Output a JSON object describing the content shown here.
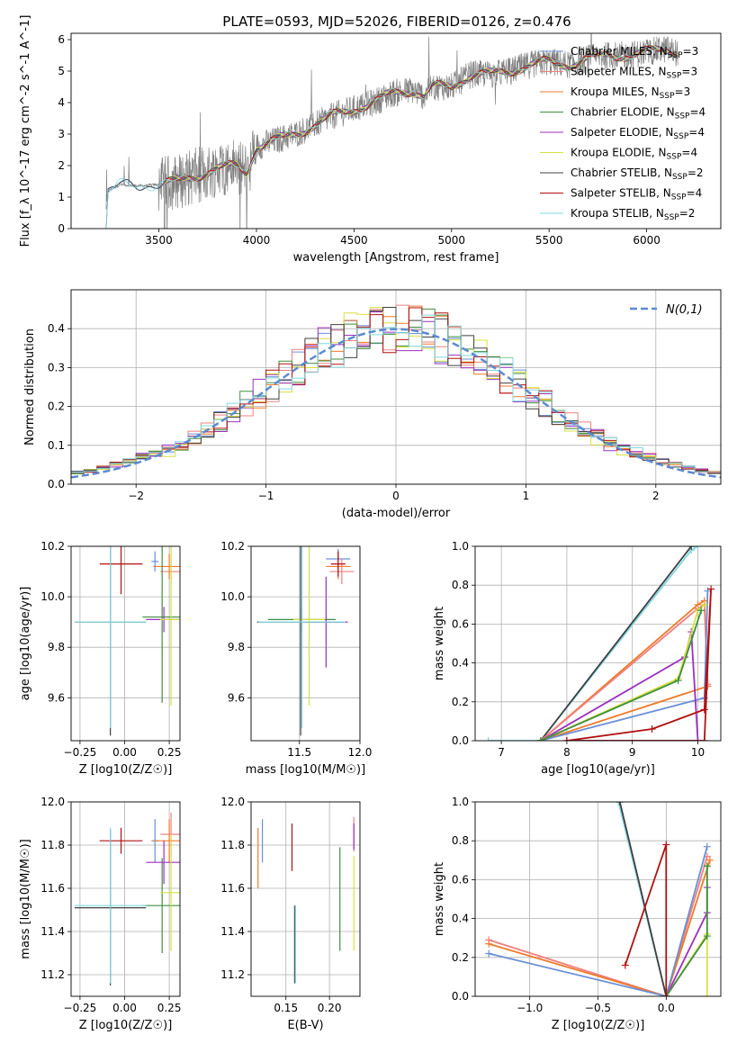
{
  "figure": {
    "title": "PLATE=0593, MJD=52026, FIBERID=0126, z=0.476"
  },
  "chart_data": [
    {
      "id": "spectrum",
      "type": "line",
      "xlabel": "wavelength [Angstrom, rest frame]",
      "ylabel": "Flux [f_λ 10^-17 erg cm^-2 s^-1 A^-1]",
      "xlim": [
        3050,
        6380
      ],
      "ylim": [
        0,
        6.2
      ],
      "xticks": [
        3500,
        4000,
        4500,
        5000,
        5500,
        6000
      ],
      "yticks": [
        0,
        1,
        2,
        3,
        4,
        5,
        6
      ],
      "grid": false,
      "legend_position": "top-right",
      "data_color": "#808080",
      "model_continuum": {
        "x": [
          3220,
          3240,
          3300,
          3400,
          3500,
          3600,
          3700,
          3800,
          3900,
          3950,
          4000,
          4050,
          4100,
          4200,
          4300,
          4400,
          4500,
          4600,
          4700,
          4800,
          4860,
          4900,
          5000,
          5100,
          5200,
          5300,
          5400,
          5500,
          5600,
          5700,
          5800,
          5900,
          6000,
          6100,
          6150
        ],
        "y": [
          0.0,
          1.2,
          1.4,
          1.35,
          1.4,
          1.5,
          1.7,
          1.9,
          2.0,
          1.8,
          2.6,
          2.7,
          2.8,
          3.0,
          3.3,
          3.6,
          3.8,
          4.0,
          4.3,
          4.4,
          4.2,
          4.5,
          4.5,
          4.9,
          4.9,
          5.0,
          5.2,
          5.3,
          5.2,
          5.4,
          5.5,
          5.5,
          5.6,
          5.7,
          5.6
        ]
      },
      "series": [
        {
          "name": "Chabrier MILES, N_SSP=3",
          "name_main": "Chabrier MILES, N",
          "name_sub": "SSP",
          "name_tail": "=3",
          "color": "#6a8fd6"
        },
        {
          "name": "Salpeter MILES, N_SSP=3",
          "name_main": "Salpeter MILES, N",
          "name_sub": "SSP",
          "name_tail": "=3",
          "color": "#f08080"
        },
        {
          "name": "Kroupa MILES, N_SSP=3",
          "name_main": "Kroupa MILES, N",
          "name_sub": "SSP",
          "name_tail": "=3",
          "color": "#f07a2a"
        },
        {
          "name": "Chabrier ELODIE, N_SSP=4",
          "name_main": "Chabrier ELODIE, N",
          "name_sub": "SSP",
          "name_tail": "=4",
          "color": "#3f8f3f"
        },
        {
          "name": "Salpeter ELODIE, N_SSP=4",
          "name_main": "Salpeter ELODIE, N",
          "name_sub": "SSP",
          "name_tail": "=4",
          "color": "#9b30c0"
        },
        {
          "name": "Kroupa ELODIE, N_SSP=4",
          "name_main": "Kroupa ELODIE, N",
          "name_sub": "SSP",
          "name_tail": "=4",
          "color": "#d8e040"
        },
        {
          "name": "Chabrier STELIB, N_SSP=2",
          "name_main": "Chabrier STELIB, N",
          "name_sub": "SSP",
          "name_tail": "=2",
          "color": "#404040"
        },
        {
          "name": "Salpeter STELIB, N_SSP=4",
          "name_main": "Salpeter STELIB, N",
          "name_sub": "SSP",
          "name_tail": "=4",
          "color": "#b01010"
        },
        {
          "name": "Kroupa STELIB, N_SSP=2",
          "name_main": "Kroupa STELIB, N",
          "name_sub": "SSP",
          "name_tail": "=2",
          "color": "#80d8e0"
        }
      ]
    },
    {
      "id": "residuals",
      "type": "line",
      "xlabel": "(data-model)/error",
      "ylabel": "Normed distribution",
      "xlim": [
        -2.5,
        2.5
      ],
      "ylim": [
        0,
        0.5
      ],
      "xticks": [
        -2,
        -1,
        0,
        1,
        2
      ],
      "yticks": [
        0.0,
        0.1,
        0.2,
        0.3,
        0.4
      ],
      "grid": true,
      "legend_position": "top-right",
      "reference": {
        "name": "N(0,1)",
        "color": "#5b8ad0",
        "style": "dashed"
      },
      "histogram_bin_width": 0.1
    },
    {
      "id": "age_vs_Z",
      "type": "scatter",
      "xlabel": "Z [log10(Z/Z☉)]",
      "ylabel": "age [log10(age/yr)]",
      "xlim": [
        -0.3,
        0.31
      ],
      "ylim": [
        9.43,
        10.2
      ],
      "xticks": [
        -0.25,
        0.0,
        0.25
      ],
      "yticks": [
        9.6,
        9.8,
        10.0,
        10.2
      ],
      "grid": true,
      "points": [
        {
          "x": 0.17,
          "xerr": 0.02,
          "y": 10.14,
          "yerr": 0.04,
          "color": "#6a8fd6"
        },
        {
          "x": 0.26,
          "xerr": 0.06,
          "y": 10.1,
          "yerr": 0.05,
          "color": "#f08080"
        },
        {
          "x": 0.25,
          "xerr": 0.09,
          "y": 10.12,
          "yerr": 0.05,
          "color": "#f07a2a"
        },
        {
          "x": 0.21,
          "xerr": 0.11,
          "y": 9.92,
          "yerr": 0.34,
          "color": "#3f8f3f"
        },
        {
          "x": 0.22,
          "xerr": 0.1,
          "y": 9.91,
          "yerr": 0.05,
          "color": "#9b30c0"
        },
        {
          "x": 0.26,
          "xerr": 0.06,
          "y": 9.91,
          "yerr": 0.34,
          "color": "#d8e040"
        },
        {
          "x": -0.08,
          "xerr": 0.2,
          "y": 9.9,
          "yerr": 0.45,
          "color": "#404040"
        },
        {
          "x": -0.02,
          "xerr": 0.12,
          "y": 10.13,
          "yerr": 0.12,
          "color": "#b01010"
        },
        {
          "x": -0.08,
          "xerr": 0.2,
          "y": 9.9,
          "yerr": 0.42,
          "color": "#80d8e0"
        }
      ]
    },
    {
      "id": "age_vs_mass",
      "type": "scatter",
      "xlabel": "mass [log10(M/M☉)]",
      "ylabel": "",
      "xlim": [
        11.1,
        12.0
      ],
      "ylim": [
        9.43,
        10.2
      ],
      "xticks": [
        11.5,
        12.0
      ],
      "yticks": [
        9.6,
        9.8,
        10.0,
        10.2
      ],
      "grid": true,
      "points": [
        {
          "x": 11.82,
          "xerr": 0.1,
          "y": 10.15,
          "yerr": 0.04,
          "color": "#6a8fd6"
        },
        {
          "x": 11.85,
          "xerr": 0.1,
          "y": 10.1,
          "yerr": 0.05,
          "color": "#f08080"
        },
        {
          "x": 11.82,
          "xerr": 0.1,
          "y": 10.12,
          "yerr": 0.05,
          "color": "#f07a2a"
        },
        {
          "x": 11.52,
          "xerr": 0.28,
          "y": 9.91,
          "yerr": 0.05,
          "color": "#3f8f3f"
        },
        {
          "x": 11.72,
          "xerr": 0.18,
          "y": 9.9,
          "yerr": 0.18,
          "color": "#9b30c0"
        },
        {
          "x": 11.58,
          "xerr": 0.13,
          "y": 9.91,
          "yerr": 0.34,
          "color": "#d8e040"
        },
        {
          "x": 11.51,
          "xerr": 0.36,
          "y": 9.9,
          "yerr": 0.45,
          "color": "#404040"
        },
        {
          "x": 11.82,
          "xerr": 0.06,
          "y": 10.13,
          "yerr": 0.05,
          "color": "#b01010"
        },
        {
          "x": 11.52,
          "xerr": 0.36,
          "y": 9.9,
          "yerr": 0.42,
          "color": "#80d8e0"
        }
      ]
    },
    {
      "id": "massweight_vs_age",
      "type": "line",
      "xlabel": "age [log10(age/yr)]",
      "ylabel": "mass weight",
      "xlim": [
        6.6,
        10.35
      ],
      "ylim": [
        0,
        1.0
      ],
      "xticks": [
        7,
        8,
        9,
        10
      ],
      "yticks": [
        0.0,
        0.2,
        0.4,
        0.6,
        0.8,
        1.0
      ],
      "grid": true,
      "series": [
        {
          "color": "#80d8e0",
          "x": [
            6.8,
            7.6,
            9.9,
            10.0
          ],
          "y": [
            0.0,
            0.0,
            0.98,
            1.0
          ]
        },
        {
          "color": "#404040",
          "x": [
            7.6,
            9.9
          ],
          "y": [
            0.0,
            1.0
          ]
        },
        {
          "color": "#f07a2a",
          "x": [
            7.6,
            10.0,
            10.1,
            10.15,
            7.6
          ],
          "y": [
            0.0,
            0.7,
            0.72,
            0.28,
            0.0
          ]
        },
        {
          "color": "#f08080",
          "x": [
            7.6,
            10.0,
            10.1,
            10.15
          ],
          "y": [
            0.0,
            0.68,
            0.7,
            0.29
          ]
        },
        {
          "color": "#6a8fd6",
          "x": [
            7.6,
            10.1,
            10.15
          ],
          "y": [
            0.0,
            0.22,
            0.77
          ]
        },
        {
          "color": "#9b30c0",
          "x": [
            7.6,
            9.8,
            9.9,
            10.0,
            8.0
          ],
          "y": [
            0.0,
            0.43,
            0.56,
            0.0,
            0.0
          ]
        },
        {
          "color": "#d8e040",
          "x": [
            7.6,
            9.7,
            10.0,
            10.1
          ],
          "y": [
            0.0,
            0.32,
            0.67,
            0.7
          ]
        },
        {
          "color": "#3f8f3f",
          "x": [
            7.6,
            9.7,
            10.05
          ],
          "y": [
            0.0,
            0.31,
            0.67
          ]
        },
        {
          "color": "#b01010",
          "x": [
            8.0,
            9.3,
            10.1,
            10.2,
            10.1,
            8.0
          ],
          "y": [
            0.0,
            0.06,
            0.16,
            0.78,
            0.0,
            0.0
          ]
        }
      ]
    },
    {
      "id": "mass_vs_Z",
      "type": "scatter",
      "xlabel": "Z [log10(Z/Z☉)]",
      "ylabel": "mass [log10(M/M☉)]",
      "xlim": [
        -0.3,
        0.31
      ],
      "ylim": [
        11.1,
        12.0
      ],
      "xticks": [
        -0.25,
        0.0,
        0.25
      ],
      "yticks": [
        11.2,
        11.4,
        11.6,
        11.8,
        12.0
      ],
      "grid": true,
      "points": [
        {
          "x": 0.17,
          "xerr": 0.02,
          "y": 11.82,
          "yerr": 0.1,
          "color": "#6a8fd6"
        },
        {
          "x": 0.26,
          "xerr": 0.06,
          "y": 11.85,
          "yerr": 0.1,
          "color": "#f08080"
        },
        {
          "x": 0.25,
          "xerr": 0.09,
          "y": 11.82,
          "yerr": 0.1,
          "color": "#f07a2a"
        },
        {
          "x": 0.21,
          "xerr": 0.11,
          "y": 11.52,
          "yerr": 0.22,
          "color": "#3f8f3f"
        },
        {
          "x": 0.22,
          "xerr": 0.1,
          "y": 11.72,
          "yerr": 0.1,
          "color": "#9b30c0"
        },
        {
          "x": 0.26,
          "xerr": 0.06,
          "y": 11.58,
          "yerr": 0.27,
          "color": "#d8e040"
        },
        {
          "x": -0.08,
          "xerr": 0.2,
          "y": 11.51,
          "yerr": 0.36,
          "color": "#404040"
        },
        {
          "x": -0.02,
          "xerr": 0.12,
          "y": 11.82,
          "yerr": 0.06,
          "color": "#b01010"
        },
        {
          "x": -0.08,
          "xerr": 0.2,
          "y": 11.52,
          "yerr": 0.36,
          "color": "#80d8e0"
        }
      ]
    },
    {
      "id": "mass_vs_EBV",
      "type": "scatter",
      "xlabel": "E(B-V)",
      "ylabel": "",
      "xlim": [
        0.11,
        0.235
      ],
      "ylim": [
        11.1,
        12.0
      ],
      "xticks": [
        0.15,
        0.2
      ],
      "yticks": [
        11.2,
        11.4,
        11.6,
        11.8,
        12.0
      ],
      "grid": true,
      "points": [
        {
          "x": 0.123,
          "y": 11.82,
          "yerr": 0.1,
          "color": "#6a8fd6"
        },
        {
          "x": 0.228,
          "y": 11.85,
          "yerr": 0.08,
          "color": "#f08080"
        },
        {
          "x": 0.118,
          "y": 11.74,
          "yerr": 0.14,
          "color": "#f07a2a"
        },
        {
          "x": 0.212,
          "y": 11.55,
          "yerr": 0.24,
          "color": "#3f8f3f"
        },
        {
          "x": 0.228,
          "y": 11.84,
          "yerr": 0.06,
          "color": "#9b30c0"
        },
        {
          "x": 0.228,
          "y": 11.53,
          "yerr": 0.22,
          "color": "#d8e040"
        },
        {
          "x": 0.16,
          "y": 11.34,
          "yerr": 0.18,
          "color": "#404040"
        },
        {
          "x": 0.157,
          "y": 11.79,
          "yerr": 0.11,
          "color": "#b01010"
        },
        {
          "x": 0.161,
          "y": 11.34,
          "yerr": 0.18,
          "color": "#80d8e0"
        }
      ]
    },
    {
      "id": "massweight_vs_Z",
      "type": "line",
      "xlabel": "Z [log10(Z/Z☉)]",
      "ylabel": "mass weight",
      "xlim": [
        -1.4,
        0.4
      ],
      "ylim": [
        0,
        1.0
      ],
      "xticks": [
        -1.0,
        -0.5,
        0.0
      ],
      "yticks": [
        0.0,
        0.2,
        0.4,
        0.6,
        0.8,
        1.0
      ],
      "grid": true,
      "series": [
        {
          "color": "#80d8e0",
          "x": [
            -0.35,
            0.0
          ],
          "y": [
            1.0,
            0.0
          ]
        },
        {
          "color": "#404040",
          "x": [
            -0.34,
            0.0
          ],
          "y": [
            1.0,
            0.0
          ]
        },
        {
          "color": "#f08080",
          "x": [
            -1.3,
            0.0,
            0.3
          ],
          "y": [
            0.29,
            0.0,
            0.72
          ]
        },
        {
          "color": "#f07a2a",
          "x": [
            -1.3,
            0.0,
            0.32
          ],
          "y": [
            0.27,
            0.0,
            0.7
          ]
        },
        {
          "color": "#6a8fd6",
          "x": [
            -1.3,
            0.0,
            0.3
          ],
          "y": [
            0.22,
            0.0,
            0.77
          ]
        },
        {
          "color": "#9b30c0",
          "x": [
            0.0,
            0.3,
            0.3
          ],
          "y": [
            0.0,
            0.43,
            0.56
          ]
        },
        {
          "color": "#d8e040",
          "x": [
            0.0,
            0.3,
            0.3,
            0.3
          ],
          "y": [
            0.0,
            0.32,
            0.67,
            0.0
          ]
        },
        {
          "color": "#3f8f3f",
          "x": [
            0.0,
            0.3,
            0.3
          ],
          "y": [
            0.0,
            0.31,
            0.67
          ]
        },
        {
          "color": "#b01010",
          "x": [
            -0.3,
            0.0,
            0.0
          ],
          "y": [
            0.16,
            0.78,
            0.0
          ]
        }
      ]
    }
  ]
}
